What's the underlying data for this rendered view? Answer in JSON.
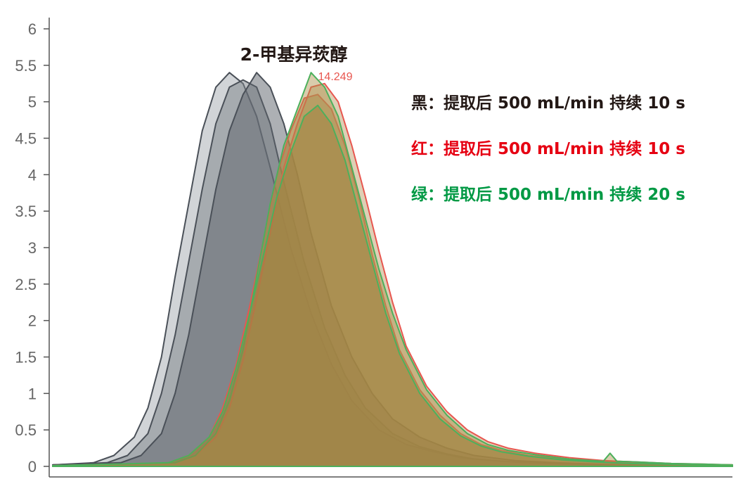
{
  "chart_data": {
    "type": "area",
    "title": "2-甲基异莰醇",
    "xlabel": "",
    "ylabel": "",
    "ylim": [
      0,
      6
    ],
    "xlim": [
      0,
      100
    ],
    "yticks": [
      "0",
      "0.5",
      "1",
      "1.5",
      "2",
      "2.5",
      "3",
      "3.5",
      "4",
      "4.5",
      "5",
      "5.5",
      "6"
    ],
    "grid": false,
    "peak_label": "14.249",
    "legend": [
      {
        "text": "黑：提取后 500 mL/min 持续 10 s",
        "color": "#231815"
      },
      {
        "text": "红：提取后 500 mL/min 持续 10 s",
        "color": "#e60012"
      },
      {
        "text": "绿：提取后 500 mL/min 持续 20 s",
        "color": "#009944"
      }
    ],
    "series": [
      {
        "group": "black",
        "stroke": "#4a5058",
        "fill": "#a3a9b0",
        "fill_opacity": 0.5,
        "x": [
          0,
          6,
          9,
          12,
          14,
          16,
          18,
          20,
          22,
          24,
          26,
          28,
          30,
          32,
          35,
          38,
          41,
          44,
          48,
          52,
          56,
          60,
          66,
          72,
          80,
          90,
          100
        ],
        "y": [
          0.02,
          0.05,
          0.15,
          0.4,
          0.8,
          1.5,
          2.6,
          3.6,
          4.6,
          5.2,
          5.4,
          5.25,
          4.8,
          4.1,
          3.0,
          2.1,
          1.4,
          0.9,
          0.5,
          0.3,
          0.2,
          0.12,
          0.07,
          0.04,
          0.02,
          0.01,
          0.01
        ]
      },
      {
        "group": "black",
        "stroke": "#4a5058",
        "fill": "#7b8188",
        "fill_opacity": 0.5,
        "x": [
          0,
          8,
          11,
          14,
          16,
          18,
          20,
          22,
          24,
          26,
          28,
          30,
          32,
          34,
          37,
          40,
          43,
          46,
          50,
          54,
          58,
          62,
          68,
          74,
          80,
          90,
          100
        ],
        "y": [
          0.02,
          0.05,
          0.15,
          0.45,
          1.0,
          1.8,
          2.8,
          3.8,
          4.7,
          5.2,
          5.3,
          5.2,
          4.7,
          3.9,
          2.8,
          1.9,
          1.25,
          0.8,
          0.45,
          0.27,
          0.17,
          0.1,
          0.06,
          0.04,
          0.02,
          0.01,
          0.01
        ]
      },
      {
        "group": "black",
        "stroke": "#4a5058",
        "fill": "#5c6269",
        "fill_opacity": 0.5,
        "x": [
          0,
          10,
          13,
          16,
          18,
          20,
          22,
          24,
          26,
          28,
          30,
          32,
          34,
          36,
          38,
          41,
          44,
          47,
          50,
          54,
          58,
          62,
          68,
          74,
          80,
          90,
          100
        ],
        "y": [
          0.02,
          0.05,
          0.15,
          0.45,
          1.0,
          1.8,
          2.8,
          3.8,
          4.6,
          5.1,
          5.4,
          5.2,
          4.7,
          4.0,
          3.2,
          2.2,
          1.5,
          1.0,
          0.65,
          0.4,
          0.25,
          0.15,
          0.08,
          0.05,
          0.03,
          0.01,
          0.01
        ]
      },
      {
        "group": "red",
        "stroke": "#e8564f",
        "fill": "#a8874a",
        "fill_opacity": 0.55,
        "x": [
          0,
          17,
          20,
          23,
          25,
          27,
          29,
          31,
          33,
          35,
          37,
          39,
          41,
          43,
          45,
          47,
          49,
          51,
          54,
          57,
          60,
          63,
          66,
          70,
          75,
          80,
          85,
          90,
          95,
          100
        ],
        "y": [
          0.01,
          0.05,
          0.15,
          0.4,
          0.8,
          1.4,
          2.2,
          3.1,
          4.0,
          4.6,
          5.05,
          5.1,
          4.9,
          4.4,
          3.7,
          2.9,
          2.2,
          1.6,
          1.05,
          0.7,
          0.45,
          0.3,
          0.22,
          0.15,
          0.1,
          0.07,
          0.05,
          0.03,
          0.02,
          0.02
        ]
      },
      {
        "group": "red",
        "stroke": "#e8564f",
        "fill": "#b5955a",
        "fill_opacity": 0.45,
        "x": [
          0,
          18,
          21,
          24,
          26,
          28,
          30,
          32,
          34,
          36,
          38,
          40,
          42,
          44,
          46,
          48,
          50,
          52,
          55,
          58,
          61,
          64,
          67,
          71,
          76,
          81,
          86,
          91,
          96,
          100
        ],
        "y": [
          0.01,
          0.05,
          0.15,
          0.4,
          0.8,
          1.45,
          2.3,
          3.2,
          4.1,
          4.7,
          5.2,
          5.25,
          5.0,
          4.4,
          3.7,
          2.95,
          2.25,
          1.65,
          1.1,
          0.75,
          0.5,
          0.34,
          0.25,
          0.18,
          0.12,
          0.08,
          0.06,
          0.04,
          0.03,
          0.02
        ]
      },
      {
        "group": "green",
        "stroke": "#4cb05c",
        "fill": "#aa8d48",
        "fill_opacity": 0.45,
        "x": [
          0,
          18,
          21,
          24,
          26,
          28,
          30,
          32,
          34,
          36,
          38,
          40,
          42,
          44,
          46,
          48,
          50,
          52,
          55,
          58,
          61,
          64,
          67,
          71,
          76,
          81,
          82,
          83,
          86,
          91,
          96,
          100
        ],
        "y": [
          0.01,
          0.05,
          0.15,
          0.45,
          0.9,
          1.6,
          2.6,
          3.6,
          4.4,
          4.9,
          5.4,
          5.2,
          4.8,
          4.1,
          3.4,
          2.7,
          2.1,
          1.6,
          1.05,
          0.7,
          0.45,
          0.3,
          0.22,
          0.16,
          0.1,
          0.07,
          0.18,
          0.07,
          0.06,
          0.04,
          0.03,
          0.02
        ]
      },
      {
        "group": "green",
        "stroke": "#4cb05c",
        "fill": "#9c7f3c",
        "fill_opacity": 0.45,
        "x": [
          0,
          17,
          20,
          23,
          25,
          27,
          29,
          31,
          33,
          35,
          37,
          39,
          41,
          43,
          45,
          47,
          49,
          51,
          54,
          57,
          60,
          63,
          66,
          70,
          75,
          80,
          85,
          90,
          95,
          100
        ],
        "y": [
          0.01,
          0.05,
          0.15,
          0.4,
          0.75,
          1.35,
          2.1,
          2.9,
          3.7,
          4.3,
          4.8,
          4.95,
          4.7,
          4.2,
          3.5,
          2.8,
          2.1,
          1.55,
          1.0,
          0.65,
          0.42,
          0.28,
          0.2,
          0.14,
          0.09,
          0.06,
          0.04,
          0.03,
          0.02,
          0.02
        ]
      }
    ]
  }
}
